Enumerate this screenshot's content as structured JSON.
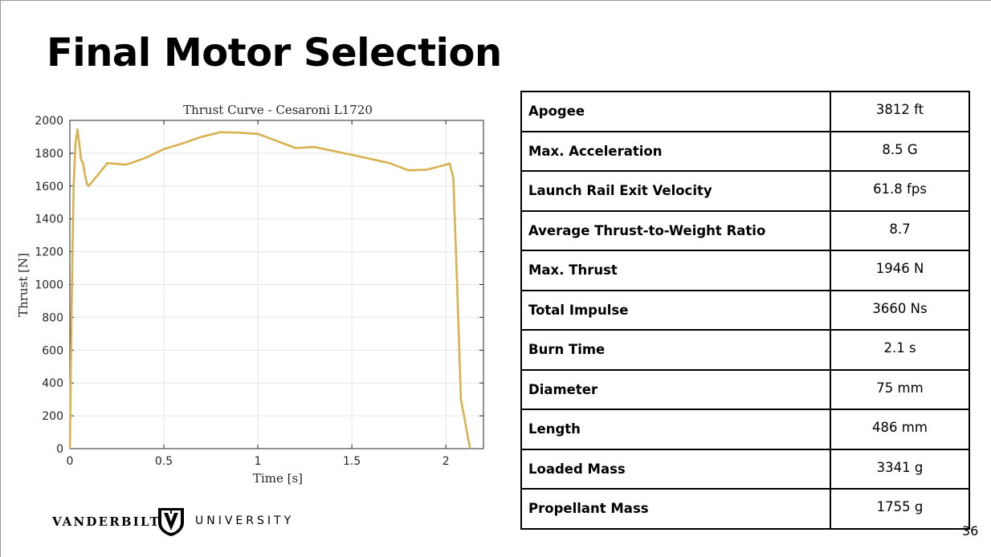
{
  "slide": {
    "title": "Final Motor Selection",
    "page_number": "36"
  },
  "chart_data": {
    "type": "line",
    "title": "Thrust Curve - Cesaroni L1720",
    "xlabel": "Time [s]",
    "ylabel": "Thrust [N]",
    "xlim": [
      0,
      2.2
    ],
    "ylim": [
      0,
      2000
    ],
    "xticks": [
      0,
      0.5,
      1,
      1.5,
      2
    ],
    "xtick_labels": [
      "0",
      "0.5",
      "1",
      "1.5",
      "2"
    ],
    "yticks": [
      0,
      200,
      400,
      600,
      800,
      1000,
      1200,
      1400,
      1600,
      1800,
      2000
    ],
    "ytick_labels": [
      "0",
      "200",
      "400",
      "600",
      "800",
      "1000",
      "1200",
      "1400",
      "1600",
      "1800",
      "2000"
    ],
    "grid": true,
    "line_color": "#D9B24F",
    "series": [
      {
        "x": [
          0,
          0.01,
          0.02,
          0.03,
          0.04,
          0.05,
          0.06,
          0.07,
          0.08,
          0.09,
          0.1,
          0.2,
          0.3,
          0.4,
          0.5,
          0.6,
          0.7,
          0.8,
          0.9,
          1.0,
          1.2,
          1.3,
          1.5,
          1.7,
          1.8,
          1.9,
          2.0,
          2.02,
          2.04,
          2.06,
          2.08,
          2.1,
          2.12,
          2.13
        ],
        "y": [
          0,
          900,
          1600,
          1860,
          1946,
          1860,
          1760,
          1740,
          1670,
          1615,
          1600,
          1740,
          1730,
          1770,
          1825,
          1860,
          1900,
          1928,
          1925,
          1918,
          1832,
          1838,
          1790,
          1740,
          1696,
          1700,
          1730,
          1738,
          1650,
          1000,
          300,
          180,
          50,
          0
        ]
      }
    ]
  },
  "specs_table": {
    "rows": [
      {
        "label": "Apogee",
        "value": "3812 ft"
      },
      {
        "label": "Max. Acceleration",
        "value": "8.5 G"
      },
      {
        "label": "Launch Rail Exit Velocity",
        "value": "61.8 fps"
      },
      {
        "label": "Average Thrust-to-Weight Ratio",
        "value": "8.7"
      },
      {
        "label": "Max. Thrust",
        "value": "1946 N"
      },
      {
        "label": "Total Impulse",
        "value": "3660 Ns"
      },
      {
        "label": "Burn Time",
        "value": "2.1 s"
      },
      {
        "label": "Diameter",
        "value": "75 mm"
      },
      {
        "label": "Length",
        "value": "486 mm"
      },
      {
        "label": "Loaded Mass",
        "value": "3341 g"
      },
      {
        "label": "Propellant Mass",
        "value": "1755 g"
      }
    ]
  },
  "logo": {
    "left_word": "VANDERBILT",
    "right_word": "UNIVERSITY",
    "shield_letter": "V"
  }
}
